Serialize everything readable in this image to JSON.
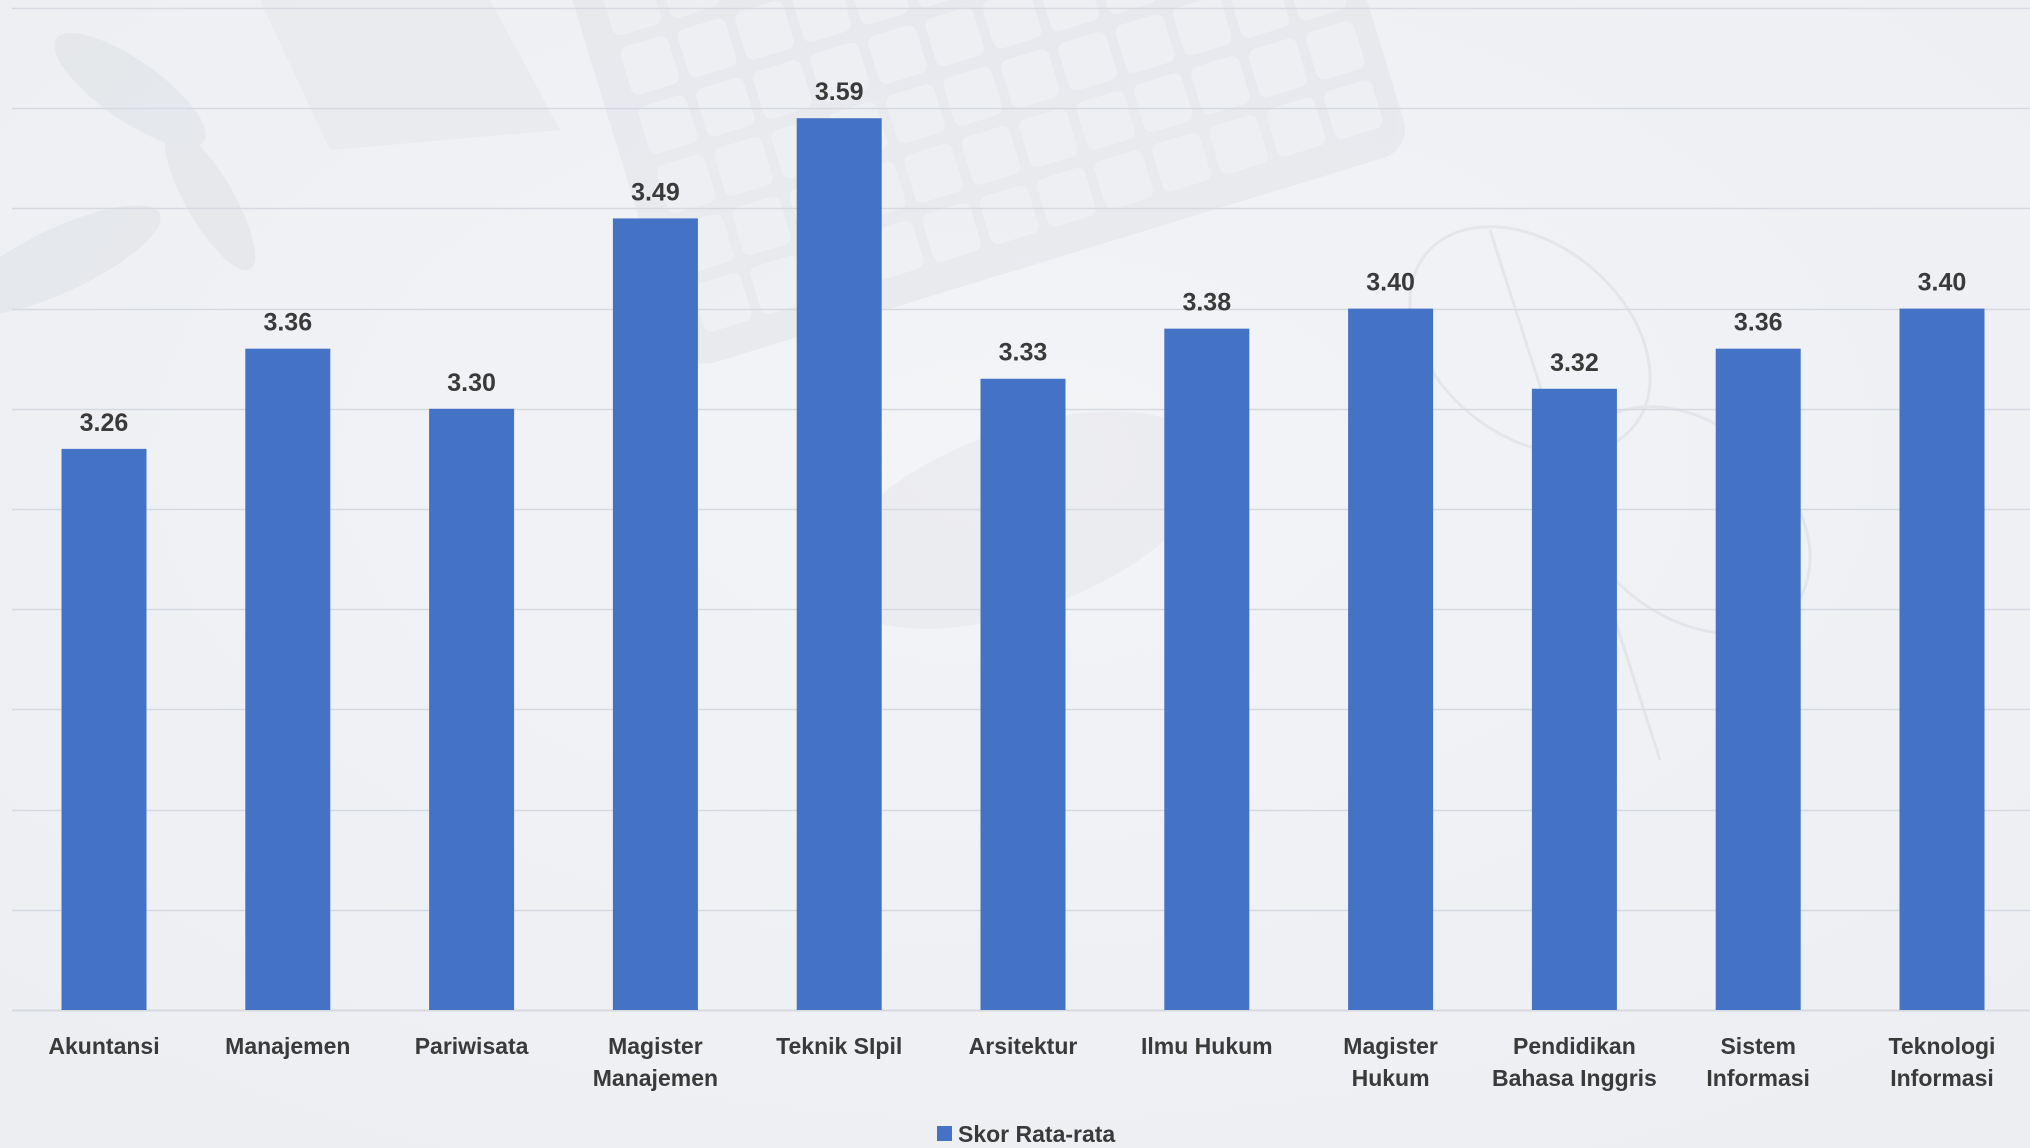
{
  "colors": {
    "bar": "#4472c4",
    "gridline": "#d6d9df",
    "text": "#3a3a3a",
    "background": "#f5f6f9"
  },
  "chart_data": {
    "type": "bar",
    "title": "",
    "xlabel": "",
    "ylabel": "",
    "categories": [
      [
        "Akuntansi"
      ],
      [
        "Manajemen"
      ],
      [
        "Pariwisata"
      ],
      [
        "Magister",
        "Manajemen"
      ],
      [
        "Teknik SIpil"
      ],
      [
        "Arsitektur"
      ],
      [
        "Ilmu Hukum"
      ],
      [
        "Magister",
        "Hukum"
      ],
      [
        "Pendidikan",
        "Bahasa Inggris"
      ],
      [
        "Sistem",
        "Informasi"
      ],
      [
        "Teknologi",
        "Informasi"
      ]
    ],
    "series": [
      {
        "name": "Skor Rata-rata",
        "values": [
          3.26,
          3.36,
          3.3,
          3.49,
          3.59,
          3.33,
          3.38,
          3.4,
          3.32,
          3.36,
          3.4
        ],
        "labels": [
          "3.26",
          "3.36",
          "3.30",
          "3.49",
          "3.59",
          "3.33",
          "3.38",
          "3.40",
          "3.32",
          "3.36",
          "3.40"
        ]
      }
    ],
    "ylim": [
      2.7,
      3.7
    ],
    "gridline_step": 0.1,
    "grid": true,
    "y_tick_labels_shown": false,
    "legend_position": "bottom-center"
  }
}
